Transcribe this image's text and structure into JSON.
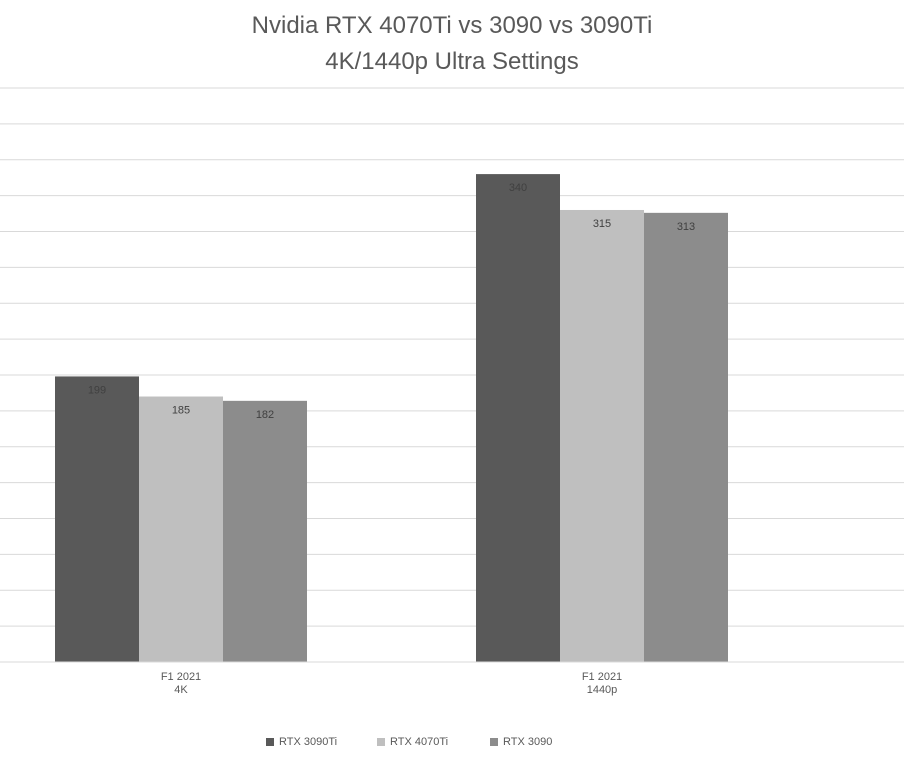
{
  "chart_data": {
    "type": "bar",
    "title": [
      "Nvidia RTX 4070Ti vs 3090 vs 3090Ti",
      "4K/1440p Ultra Settings"
    ],
    "categories": [
      [
        "F1 2021",
        "4K"
      ],
      [
        "F1 2021",
        "1440p"
      ]
    ],
    "series": [
      {
        "name": "RTX 3090Ti",
        "values": [
          199,
          340
        ],
        "color": "#595959"
      },
      {
        "name": "RTX 4070Ti",
        "values": [
          185,
          315
        ],
        "color": "#bfbfbf"
      },
      {
        "name": "RTX 3090",
        "values": [
          182,
          313
        ],
        "color": "#8c8c8c"
      }
    ],
    "ylim": [
      0,
      400
    ],
    "grid": true,
    "legend": "bottom",
    "data_labels": true
  }
}
